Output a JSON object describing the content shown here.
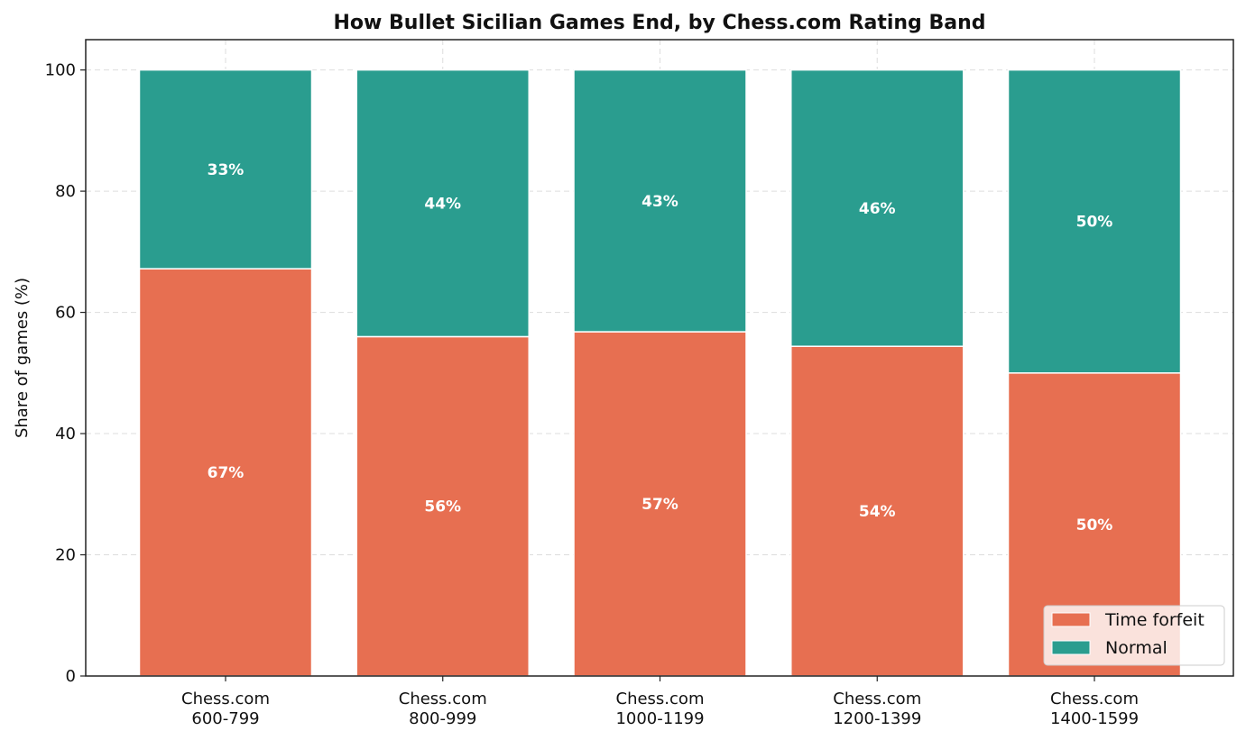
{
  "chart_data": {
    "type": "bar",
    "stacked": true,
    "title": "How Bullet Sicilian Games End, by Chess.com Rating Band",
    "xlabel": "",
    "ylabel": "Share of games (%)",
    "ylim": [
      0,
      105
    ],
    "yticks": [
      0,
      20,
      40,
      60,
      80,
      100
    ],
    "grid": true,
    "legend_position": "bottom-right",
    "categories": [
      [
        "Chess.com",
        "600-799"
      ],
      [
        "Chess.com",
        "800-999"
      ],
      [
        "Chess.com",
        "1000-1199"
      ],
      [
        "Chess.com",
        "1200-1399"
      ],
      [
        "Chess.com",
        "1400-1599"
      ]
    ],
    "series": [
      {
        "name": "Time forfeit",
        "color": "#e76f51",
        "values": [
          67.2,
          56.0,
          56.8,
          54.4,
          50.0
        ],
        "labels": [
          "67%",
          "56%",
          "57%",
          "54%",
          "50%"
        ]
      },
      {
        "name": "Normal",
        "color": "#2a9d8f",
        "values": [
          32.8,
          44.0,
          43.2,
          45.6,
          50.0
        ],
        "labels": [
          "33%",
          "44%",
          "43%",
          "46%",
          "50%"
        ]
      }
    ]
  }
}
